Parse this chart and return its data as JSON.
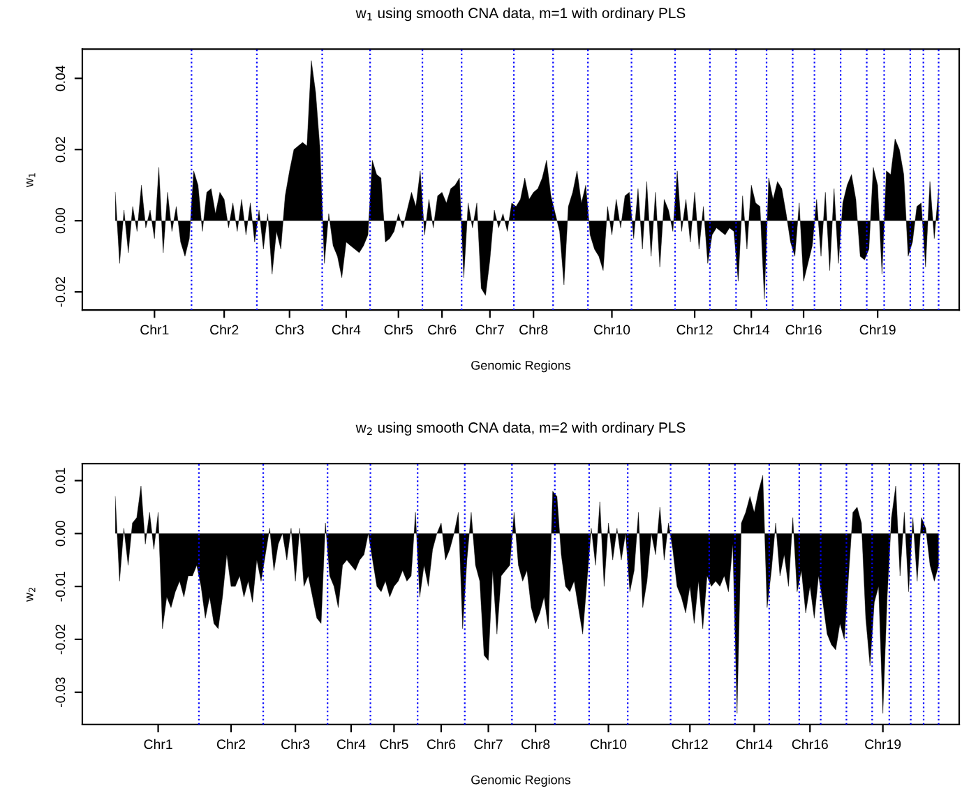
{
  "chart_data": [
    {
      "type": "area",
      "title": "w$_{1}$ using smooth CNA data, m=1 with ordinary PLS",
      "xlabel": "Genomic Regions",
      "ylabel": "w$_{1}$",
      "categories": [
        null,
        null,
        null,
        null,
        null,
        null,
        null,
        null,
        null,
        "Chr1",
        null,
        null,
        null,
        null,
        null,
        null,
        null,
        null,
        null,
        null,
        null,
        null,
        null,
        null,
        null,
        "Chr2",
        null,
        null,
        null,
        null,
        null,
        null,
        null,
        null,
        null,
        null,
        null,
        null,
        null,
        null,
        "Chr3",
        null,
        null,
        null,
        null,
        null,
        null,
        null,
        null,
        null,
        null,
        null,
        null,
        "Chr4",
        null,
        null,
        null,
        null,
        null,
        null,
        null,
        null,
        null,
        null,
        null,
        "Chr5",
        null,
        null,
        null,
        null,
        null,
        null,
        null,
        null,
        null,
        "Chr6",
        null,
        null,
        null,
        null,
        null,
        null,
        null,
        null,
        null,
        null,
        "Chr7",
        null,
        null,
        null,
        null,
        null,
        null,
        null,
        null,
        null,
        "Chr8",
        null,
        null,
        null,
        null,
        null,
        null,
        null,
        null,
        null,
        null,
        null,
        null,
        null,
        null,
        null,
        null,
        null,
        "Chr10",
        null,
        null,
        null,
        null,
        null,
        null,
        null,
        null,
        null,
        null,
        null,
        null,
        null,
        null,
        null,
        null,
        null,
        null,
        "Chr12",
        null,
        null,
        null,
        null,
        null,
        null,
        null,
        null,
        null,
        null,
        null,
        null,
        "Chr14",
        null,
        null,
        null,
        null,
        null,
        null,
        null,
        null,
        null,
        null,
        null,
        "Chr16",
        null,
        null,
        null,
        null,
        null,
        null,
        null,
        null,
        null,
        null,
        null,
        null,
        null,
        null,
        null,
        null,
        "Chr19",
        null,
        null,
        null,
        null,
        null,
        null,
        null,
        null,
        null,
        null,
        null,
        null,
        null,
        null
      ],
      "ylim": [
        -0.0251,
        0.0482
      ],
      "yticks": [
        {
          "value": -0.02,
          "label": "-0.02"
        },
        {
          "value": 0.0,
          "label": "0.00"
        },
        {
          "value": 0.02,
          "label": "0.02"
        },
        {
          "value": 0.04,
          "label": "0.04"
        }
      ],
      "grid": false,
      "legend": false,
      "series": [
        {
          "color": "#000000",
          "values": [
            0.008,
            -0.012,
            0.003,
            -0.009,
            0.004,
            -0.003,
            0.01,
            -0.002,
            0.003,
            -0.005,
            0.015,
            -0.009,
            0.008,
            -0.003,
            0.004,
            -0.006,
            -0.01,
            -0.005,
            0.014,
            0.01,
            -0.003,
            0.008,
            0.009,
            0.002,
            0.008,
            0.006,
            -0.002,
            0.005,
            -0.003,
            0.006,
            -0.004,
            0.005,
            -0.006,
            0.003,
            -0.008,
            0.002,
            -0.015,
            -0.003,
            -0.008,
            0.007,
            0.014,
            0.02,
            0.021,
            0.022,
            0.021,
            0.045,
            0.036,
            0.02,
            -0.012,
            0.002,
            -0.007,
            -0.01,
            -0.016,
            -0.006,
            -0.007,
            -0.008,
            -0.009,
            -0.007,
            -0.004,
            0.017,
            0.013,
            0.012,
            -0.006,
            -0.005,
            -0.003,
            0.002,
            -0.002,
            0.003,
            0.008,
            0.004,
            0.014,
            -0.004,
            0.006,
            -0.002,
            0.007,
            0.008,
            0.005,
            0.009,
            0.01,
            0.012,
            -0.016,
            0.005,
            -0.002,
            0.005,
            -0.019,
            -0.021,
            -0.011,
            0.003,
            -0.002,
            0.002,
            -0.003,
            0.005,
            0.004,
            0.006,
            0.012,
            0.006,
            0.008,
            0.009,
            0.012,
            0.017,
            0.007,
            0.002,
            -0.003,
            -0.018,
            0.004,
            0.008,
            0.014,
            0.005,
            0.01,
            -0.004,
            -0.008,
            -0.01,
            -0.014,
            0.004,
            -0.004,
            0.006,
            -0.002,
            0.007,
            0.008,
            -0.005,
            0.009,
            -0.008,
            0.011,
            -0.01,
            0.008,
            -0.013,
            0.006,
            0.003,
            -0.003,
            0.014,
            -0.003,
            0.006,
            -0.006,
            0.008,
            -0.008,
            0.004,
            -0.012,
            -0.004,
            -0.002,
            -0.003,
            -0.004,
            -0.002,
            -0.003,
            -0.017,
            0.007,
            -0.008,
            0.01,
            0.005,
            0.004,
            -0.022,
            0.012,
            0.006,
            0.011,
            0.009,
            0.002,
            -0.006,
            -0.01,
            0.005,
            -0.017,
            -0.012,
            -0.007,
            0.006,
            -0.01,
            0.008,
            -0.014,
            0.009,
            -0.012,
            0.005,
            0.01,
            0.013,
            0.006,
            -0.01,
            -0.011,
            -0.008,
            0.015,
            0.01,
            -0.015,
            0.014,
            0.013,
            0.023,
            0.02,
            0.013,
            -0.01,
            -0.006,
            0.004,
            0.005,
            -0.013,
            0.011,
            -0.005,
            0.009
          ]
        }
      ]
    },
    {
      "type": "area",
      "title": "w$_{2}$ using smooth CNA data, m=2 with ordinary PLS",
      "xlabel": "Genomic Regions",
      "ylabel": "w$_{2}$",
      "categories": [
        null,
        null,
        null,
        null,
        null,
        null,
        null,
        null,
        null,
        null,
        "Chr1",
        null,
        null,
        null,
        null,
        null,
        null,
        null,
        null,
        null,
        null,
        null,
        null,
        null,
        null,
        null,
        null,
        "Chr2",
        null,
        null,
        null,
        null,
        null,
        null,
        null,
        null,
        null,
        null,
        null,
        null,
        null,
        null,
        "Chr3",
        null,
        null,
        null,
        null,
        null,
        null,
        null,
        null,
        null,
        null,
        null,
        null,
        "Chr4",
        null,
        null,
        null,
        null,
        null,
        null,
        null,
        null,
        null,
        "Chr5",
        null,
        null,
        null,
        null,
        null,
        null,
        null,
        null,
        null,
        null,
        "Chr6",
        null,
        null,
        null,
        null,
        null,
        null,
        null,
        null,
        null,
        null,
        "Chr7",
        null,
        null,
        null,
        null,
        null,
        null,
        null,
        null,
        null,
        null,
        "Chr8",
        null,
        null,
        null,
        null,
        null,
        null,
        null,
        null,
        null,
        null,
        null,
        null,
        null,
        null,
        null,
        null,
        "Chr10",
        null,
        null,
        null,
        null,
        null,
        null,
        null,
        null,
        null,
        null,
        null,
        null,
        null,
        null,
        null,
        null,
        null,
        null,
        "Chr12",
        null,
        null,
        null,
        null,
        null,
        null,
        null,
        null,
        null,
        null,
        null,
        null,
        null,
        null,
        "Chr14",
        null,
        null,
        null,
        null,
        null,
        null,
        null,
        null,
        null,
        null,
        null,
        null,
        "Chr16",
        null,
        null,
        null,
        null,
        null,
        null,
        null,
        null,
        null,
        null,
        null,
        null,
        null,
        null,
        null,
        null,
        "Chr19",
        null,
        null,
        null,
        null,
        null,
        null,
        null,
        null,
        null,
        null,
        null,
        null,
        null
      ],
      "ylim": [
        -0.0361,
        0.0132
      ],
      "yticks": [
        {
          "value": -0.03,
          "label": "-0.03"
        },
        {
          "value": -0.02,
          "label": "-0.02"
        },
        {
          "value": -0.01,
          "label": "-0.01"
        },
        {
          "value": 0.0,
          "label": "0.00"
        },
        {
          "value": 0.01,
          "label": "0.01"
        }
      ],
      "grid": false,
      "legend": false,
      "series": [
        {
          "color": "#000000",
          "values": [
            0.007,
            -0.009,
            0.001,
            -0.006,
            0.002,
            0.003,
            0.009,
            -0.002,
            0.004,
            -0.003,
            0.004,
            -0.018,
            -0.012,
            -0.014,
            -0.011,
            -0.009,
            -0.012,
            -0.008,
            -0.008,
            -0.006,
            -0.01,
            -0.016,
            -0.012,
            -0.017,
            -0.018,
            -0.012,
            -0.004,
            -0.01,
            -0.01,
            -0.008,
            -0.012,
            -0.009,
            -0.013,
            -0.005,
            -0.009,
            -0.004,
            0.001,
            -0.007,
            -0.002,
            0.0,
            -0.005,
            0.001,
            -0.009,
            0.001,
            -0.01,
            -0.008,
            -0.012,
            -0.016,
            -0.017,
            0.002,
            -0.008,
            -0.01,
            -0.014,
            -0.006,
            -0.005,
            -0.006,
            -0.007,
            -0.005,
            -0.004,
            0.0,
            -0.005,
            -0.01,
            -0.011,
            -0.009,
            -0.012,
            -0.01,
            -0.009,
            -0.007,
            -0.009,
            -0.008,
            0.004,
            -0.012,
            -0.006,
            -0.01,
            -0.003,
            0.0,
            0.002,
            -0.005,
            -0.003,
            0.0,
            0.004,
            -0.018,
            -0.005,
            0.004,
            -0.006,
            -0.009,
            -0.023,
            -0.024,
            -0.007,
            -0.019,
            -0.008,
            -0.007,
            -0.006,
            0.004,
            -0.006,
            -0.009,
            -0.007,
            -0.014,
            -0.017,
            -0.015,
            -0.012,
            -0.018,
            0.008,
            0.007,
            -0.004,
            -0.01,
            -0.011,
            -0.009,
            -0.014,
            -0.019,
            -0.009,
            0.001,
            -0.006,
            0.006,
            -0.01,
            0.002,
            -0.005,
            0.001,
            -0.005,
            0.0,
            -0.011,
            -0.007,
            0.004,
            -0.014,
            -0.009,
            0.0,
            -0.004,
            0.005,
            -0.005,
            0.002,
            -0.003,
            -0.01,
            -0.012,
            -0.015,
            -0.01,
            -0.017,
            -0.009,
            -0.018,
            -0.008,
            -0.01,
            -0.009,
            -0.01,
            -0.008,
            -0.011,
            -0.002,
            -0.034,
            0.002,
            0.004,
            0.007,
            0.004,
            0.008,
            0.011,
            -0.014,
            -0.007,
            0.002,
            -0.008,
            -0.004,
            -0.01,
            0.003,
            -0.011,
            -0.007,
            -0.015,
            -0.01,
            -0.016,
            -0.008,
            -0.013,
            -0.019,
            -0.021,
            -0.022,
            -0.017,
            -0.02,
            -0.008,
            0.004,
            0.005,
            0.002,
            -0.016,
            -0.025,
            -0.013,
            -0.01,
            -0.034,
            -0.012,
            0.003,
            0.009,
            -0.008,
            0.004,
            -0.011,
            0.003,
            -0.009,
            0.003,
            0.001,
            -0.006,
            -0.009,
            -0.006
          ]
        }
      ]
    }
  ]
}
